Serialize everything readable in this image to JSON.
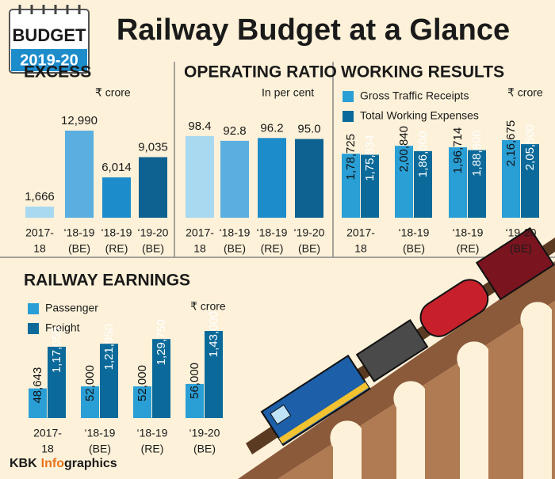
{
  "header": {
    "badge": "BUDGET",
    "badge_year": "2019-20",
    "title": "Railway Budget at a Glance"
  },
  "footer": {
    "credit": [
      "KBK",
      "Info",
      "graphics"
    ]
  },
  "chart_data": [
    {
      "type": "bar",
      "title": "EXCESS",
      "unit": "₹ crore",
      "categories": [
        [
          "2017-",
          "18"
        ],
        [
          "‘18-19",
          "(BE)"
        ],
        [
          "‘18-19",
          "(RE)"
        ],
        [
          "‘19-20",
          "(BE)"
        ]
      ],
      "values": [
        1666,
        12990,
        6014,
        9035
      ],
      "value_labels": [
        "1,666",
        "12,990",
        "6,014",
        "9,035"
      ],
      "colors": [
        "#a9d9f1",
        "#5aaee0",
        "#1d8ccb",
        "#0d6291"
      ]
    },
    {
      "type": "bar",
      "title": "OPERATING RATIO",
      "unit": "In per cent",
      "categories": [
        [
          "2017-",
          "18"
        ],
        [
          "‘18-19",
          "(BE)"
        ],
        [
          "‘18-19",
          "(RE)"
        ],
        [
          "‘19-20",
          "(BE)"
        ]
      ],
      "values": [
        98.4,
        92.8,
        96.2,
        95.0
      ],
      "value_labels": [
        "98.4",
        "92.8",
        "96.2",
        "95.0"
      ],
      "colors": [
        "#a9d9f1",
        "#5aaee0",
        "#1d8ccb",
        "#0d6291"
      ]
    },
    {
      "type": "grouped-bar",
      "title": "WORKING RESULTS",
      "unit": "₹ crore",
      "categories": [
        [
          "2017-",
          "18"
        ],
        [
          "‘18-19",
          "(BE)"
        ],
        [
          "‘18-19",
          "(RE)"
        ],
        [
          "‘19-20",
          "(BE)"
        ]
      ],
      "series": [
        {
          "name": "Gross Traffic Receipts",
          "color": "#2a9fd6",
          "values": [
            178725,
            200840,
            196714,
            216675
          ],
          "value_labels": [
            "1,78,725",
            "2,00,840",
            "1,96,714",
            "2,16,675"
          ]
        },
        {
          "name": "Total Working Expenses",
          "color": "#0b6a9a",
          "values": [
            175834,
            186000,
            188800,
            205500
          ],
          "value_labels": [
            "1,75,834",
            "1,86,000",
            "1,88,800",
            "2,05,500"
          ]
        }
      ]
    },
    {
      "type": "grouped-bar",
      "title": "RAILWAY EARNINGS",
      "unit": "₹ crore",
      "categories": [
        [
          "2017-",
          "18"
        ],
        [
          "‘18-19",
          "(BE)"
        ],
        [
          "‘18-19",
          "(RE)"
        ],
        [
          "‘19-20",
          "(BE)"
        ]
      ],
      "series": [
        {
          "name": "Passenger",
          "color": "#2a9fd6",
          "values": [
            48643,
            52000,
            52000,
            56000
          ],
          "value_labels": [
            "48,643",
            "52,000",
            "52,000",
            "56,000"
          ]
        },
        {
          "name": "Freight",
          "color": "#0b6a9a",
          "values": [
            117055,
            121950,
            129750,
            143000
          ],
          "value_labels": [
            "1,17,055",
            "1,21,950",
            "1,29,750",
            "1,43,000"
          ]
        }
      ]
    }
  ]
}
